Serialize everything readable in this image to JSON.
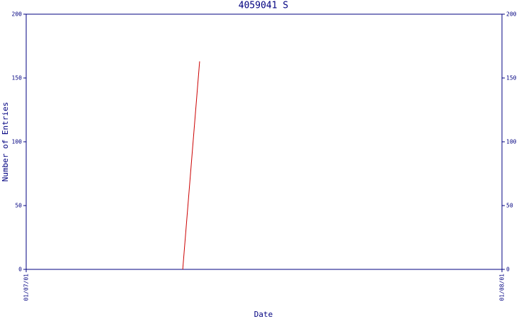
{
  "chart_data": {
    "type": "line",
    "title": "4059041 S",
    "x_label": "Date",
    "y_label": "Number of Entries",
    "x": [
      10.2,
      11.3
    ],
    "series": [
      {
        "name": "4059041 S",
        "color": "#cc0000",
        "values": [
          0,
          163
        ]
      }
    ],
    "xlim": [
      0,
      31
    ],
    "xticks": [
      {
        "value": 0,
        "label": "01/07/01"
      },
      {
        "value": 31,
        "label": "01/08/01"
      }
    ],
    "ylim": [
      0,
      200
    ],
    "yticks": [
      0,
      50,
      100,
      150,
      200
    ],
    "axis_color": "#000080"
  }
}
